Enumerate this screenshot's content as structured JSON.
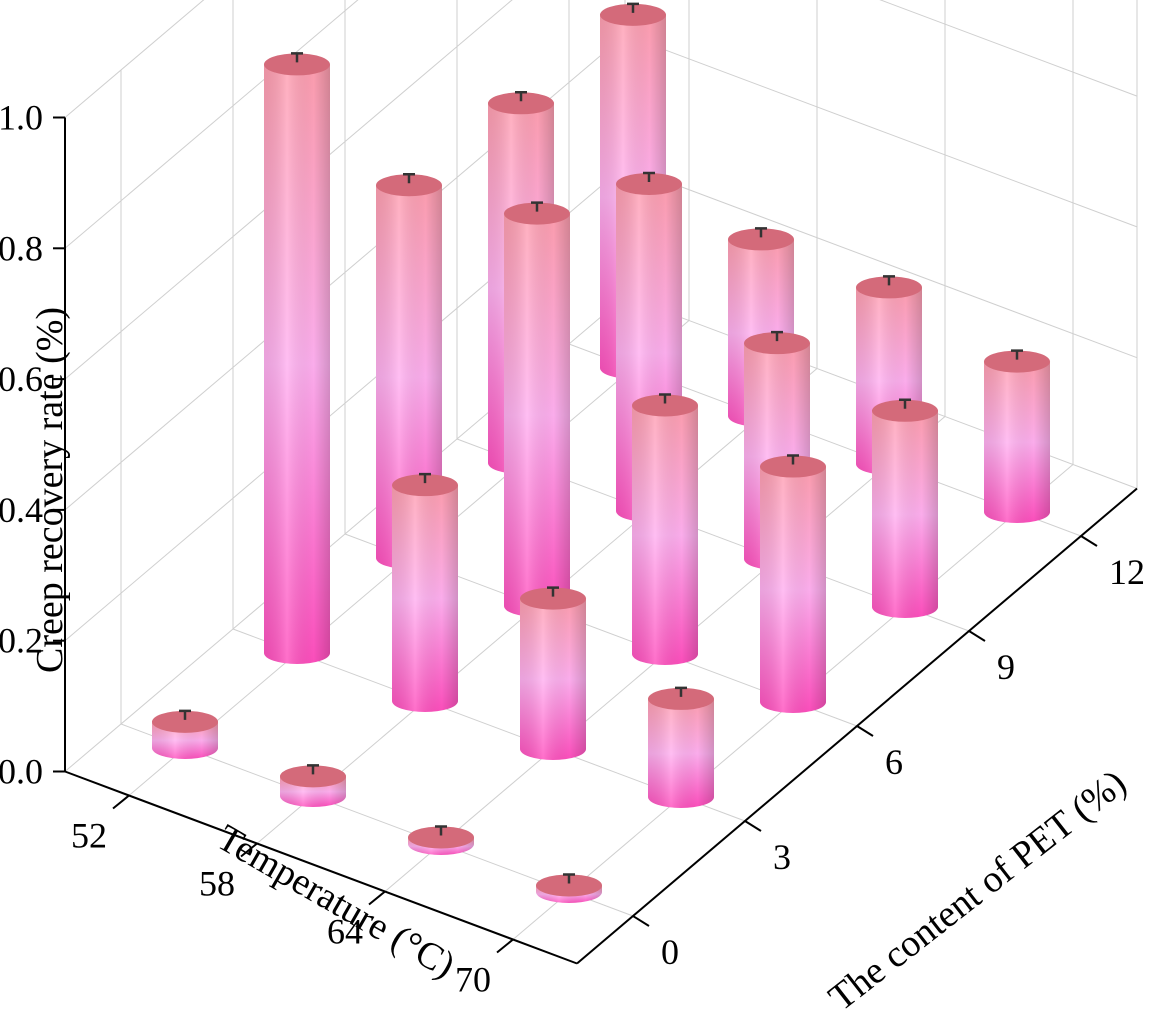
{
  "chart_data": {
    "type": "bar3d",
    "zlabel": "Creep recovery rate (%)",
    "xlabel": "Temperature (°C)",
    "ylabel": "The content of PET (%)",
    "zlim": [
      0,
      1.0
    ],
    "zticks": [
      "0.0",
      "0.2",
      "0.4",
      "0.6",
      "0.8",
      "1.0"
    ],
    "temperatures": [
      "52",
      "58",
      "64",
      "70"
    ],
    "pet_contents": [
      "0",
      "3",
      "6",
      "9",
      "12"
    ],
    "values": [
      [
        0.04,
        0.9,
        0.57,
        0.55,
        0.54
      ],
      [
        0.03,
        0.33,
        0.6,
        0.5,
        0.27
      ],
      [
        0.01,
        0.23,
        0.38,
        0.33,
        0.27
      ],
      [
        0.01,
        0.15,
        0.36,
        0.3,
        0.23
      ]
    ],
    "bar_colors": {
      "top": "#d46a7a",
      "upper": "#ff9fb2",
      "middle": "#ffb3f0",
      "lower": "#ff4fbf"
    }
  }
}
